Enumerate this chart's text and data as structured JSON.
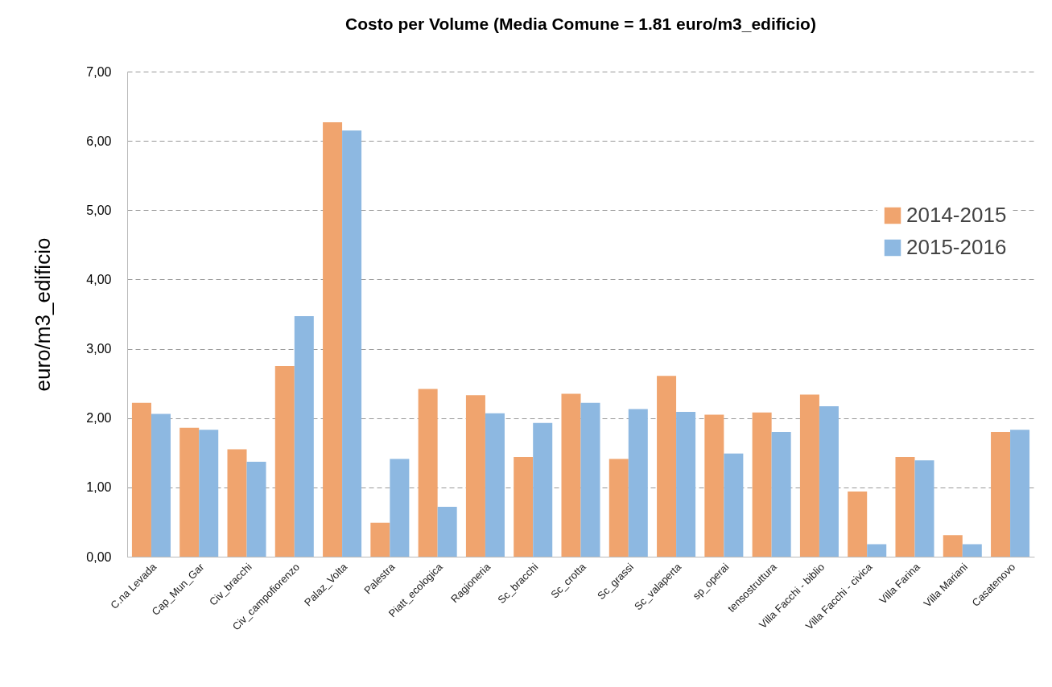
{
  "chart_data": {
    "type": "bar",
    "title": "Costo per Volume (Media Comune = 1.81 euro/m3_edificio)",
    "ylabel": "euro/m3_edificio",
    "categories": [
      "C.na Levada",
      "Cap_Mun_Gar",
      "Civ_bracchi",
      "Civ_campofiorenzo",
      "Palaz_Volta",
      "Palestra",
      "Piatt_ecologica",
      "Ragioneria",
      "Sc_bracchi",
      "Sc_crotta",
      "Sc_grassi",
      "Sc_valaperta",
      "sp_operai",
      "tensostruttura",
      "Villa Facchi - biblio",
      "Villa Facchi - civica",
      "Villa Farina",
      "Villa Mariani",
      "Casatenovo"
    ],
    "series": [
      {
        "name": "2014-2015",
        "color": "#f0a46e",
        "values": [
          2.22,
          1.86,
          1.55,
          2.75,
          6.27,
          0.49,
          2.42,
          2.33,
          1.44,
          2.35,
          1.41,
          2.61,
          2.05,
          2.08,
          2.34,
          0.94,
          1.44,
          0.31,
          1.8
        ]
      },
      {
        "name": "2015-2016",
        "color": "#8db8e1",
        "values": [
          2.06,
          1.83,
          1.37,
          3.47,
          6.15,
          1.41,
          0.72,
          2.07,
          1.93,
          2.22,
          2.13,
          2.09,
          1.49,
          1.8,
          2.17,
          0.18,
          1.39,
          0.18,
          1.83
        ]
      }
    ],
    "ylim": [
      0,
      7
    ],
    "yticks": [
      {
        "value": 0,
        "label": "0,00"
      },
      {
        "value": 1,
        "label": "1,00"
      },
      {
        "value": 2,
        "label": "2,00"
      },
      {
        "value": 3,
        "label": "3,00"
      },
      {
        "value": 4,
        "label": "4,00"
      },
      {
        "value": 5,
        "label": "5,00"
      },
      {
        "value": 6,
        "label": "6,00"
      },
      {
        "value": 7,
        "label": "7,00"
      }
    ],
    "grid": "y",
    "legend": "right"
  }
}
